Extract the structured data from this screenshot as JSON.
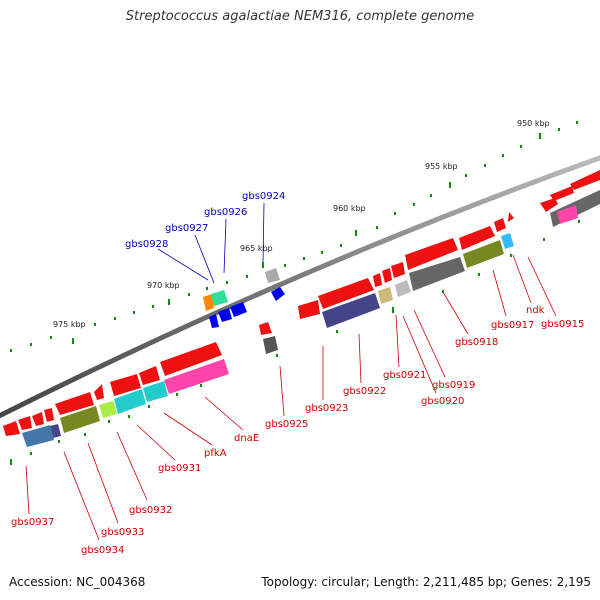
{
  "title": "Streptococcus agalactiae NEM316, complete genome",
  "footer": {
    "accession": "Accession: NC_004368",
    "summary": "Topology: circular; Length: 2,211,485 bp; Genes: 2,195"
  },
  "colors": {
    "backbone": "#888888",
    "cds_forward": "#ee1111",
    "label_red": "#cc0000",
    "label_blue": "#0000bb",
    "tick": "#118811"
  },
  "ticks": [
    {
      "label": "950 kbp"
    },
    {
      "label": "955 kbp"
    },
    {
      "label": "960 kbp"
    },
    {
      "label": "965 kbp"
    },
    {
      "label": "970 kbp"
    },
    {
      "label": "975 kbp"
    }
  ],
  "gene_labels": [
    {
      "name": "gbs0924"
    },
    {
      "name": "gbs0926"
    },
    {
      "name": "gbs0927"
    },
    {
      "name": "gbs0928"
    },
    {
      "name": "ndk"
    },
    {
      "name": "gbs0915"
    },
    {
      "name": "gbs0917"
    },
    {
      "name": "gbs0918"
    },
    {
      "name": "gbs0919"
    },
    {
      "name": "gbs0920"
    },
    {
      "name": "gbs0921"
    },
    {
      "name": "gbs0922"
    },
    {
      "name": "gbs0923"
    },
    {
      "name": "gbs0925"
    },
    {
      "name": "dnaE"
    },
    {
      "name": "pfkA"
    },
    {
      "name": "gbs0931"
    },
    {
      "name": "gbs0932"
    },
    {
      "name": "gbs0933"
    },
    {
      "name": "gbs0934"
    },
    {
      "name": "gbs0937"
    }
  ]
}
